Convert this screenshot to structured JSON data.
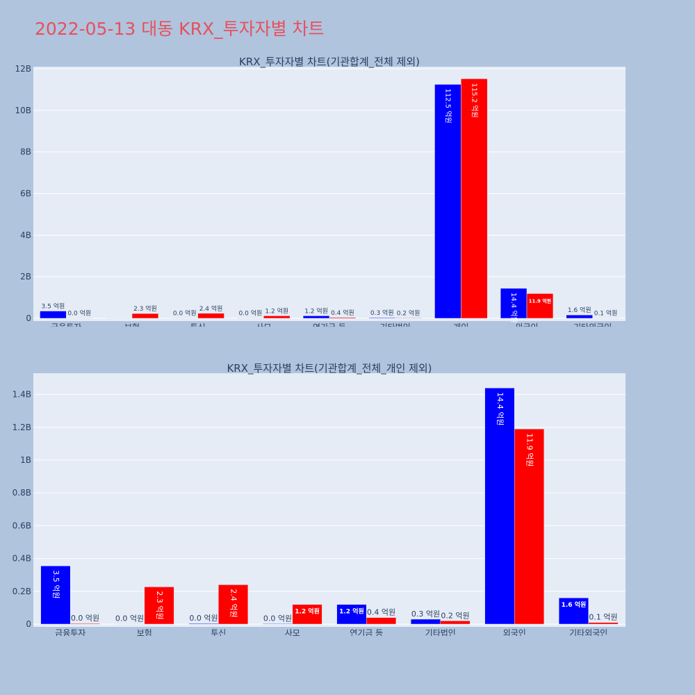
{
  "page": {
    "title": "2022-05-13 대동 KRX_투자자별 차트"
  },
  "colors": {
    "buy": "#0000ff",
    "sell": "#ff0000",
    "plot_bg": "#e5ecf6",
    "page_bg": "#b0c4de",
    "title": "#e8505b"
  },
  "chart_data": [
    {
      "type": "bar",
      "title": "KRX_투자자별 차트(기관합계_전체 제외)",
      "categories": [
        "금융투자",
        "보험",
        "투신",
        "사모",
        "연기금 등",
        "기타법인",
        "개인",
        "외국인",
        "기타외국인"
      ],
      "series": [
        {
          "values": [
            0.35,
            0.0,
            0.0,
            0.0,
            0.12,
            0.03,
            11.25,
            1.44,
            0.16
          ],
          "labels": [
            "3.5 억원",
            "",
            "0.0 억원",
            "0.0 억원",
            "1.2 억원",
            "0.3 억원",
            "112.5 억원",
            "14.4 억원",
            "1.6 억원"
          ]
        },
        {
          "values": [
            0.0,
            0.23,
            0.24,
            0.12,
            0.04,
            0.02,
            11.52,
            1.19,
            0.01
          ],
          "labels": [
            "0.0 억원",
            "2.3 억원",
            "2.4 억원",
            "1.2 억원",
            "0.4 억원",
            "0.2 억원",
            "115.2 억원",
            "11.9 억원",
            "0.1 억원"
          ]
        }
      ],
      "yticks": [
        "0",
        "2B",
        "4B",
        "6B",
        "8B",
        "10B",
        "12B"
      ],
      "ytick_values": [
        0,
        2,
        4,
        6,
        8,
        10,
        12
      ],
      "ylim": [
        0,
        12.1
      ],
      "inside_label_indices": [
        [
          6,
          7
        ],
        [
          6,
          7
        ]
      ],
      "rotated_label_indices": [
        [
          6,
          7
        ],
        [
          6
        ]
      ],
      "grid": true,
      "legend": "none"
    },
    {
      "type": "bar",
      "title": "KRX_투자자별 차트(기관합계_전체_개인 제외)",
      "categories": [
        "금융투자",
        "보험",
        "투신",
        "사모",
        "연기금 등",
        "기타법인",
        "외국인",
        "기타외국인"
      ],
      "series": [
        {
          "values": [
            0.355,
            0.0,
            0.004,
            0.003,
            0.12,
            0.03,
            1.44,
            0.16
          ],
          "labels": [
            "3.5 억원",
            "0.0 억원",
            "0.0 억원",
            "0.0 억원",
            "1.2 억원",
            "0.3 억원",
            "14.4 억원",
            "1.6 억원"
          ]
        },
        {
          "values": [
            0.004,
            0.227,
            0.24,
            0.12,
            0.04,
            0.02,
            1.19,
            0.01
          ],
          "labels": [
            "0.0 억원",
            "2.3 억원",
            "2.4 억원",
            "1.2 억원",
            "0.4 억원",
            "0.2 억원",
            "11.9 억원",
            "0.1 억원"
          ]
        }
      ],
      "yticks": [
        "0",
        "0.2B",
        "0.4B",
        "0.6B",
        "0.8B",
        "1B",
        "1.2B",
        "1.4B"
      ],
      "ytick_values": [
        0,
        0.2,
        0.4,
        0.6,
        0.8,
        1.0,
        1.2,
        1.4
      ],
      "ylim": [
        0,
        1.53
      ],
      "inside_label_indices": [
        [
          0,
          4,
          6,
          7
        ],
        [
          1,
          2,
          3,
          6
        ]
      ],
      "rotated_label_indices": [
        [
          0,
          6
        ],
        [
          1,
          2,
          6
        ]
      ],
      "grid": true,
      "legend": "none"
    }
  ]
}
